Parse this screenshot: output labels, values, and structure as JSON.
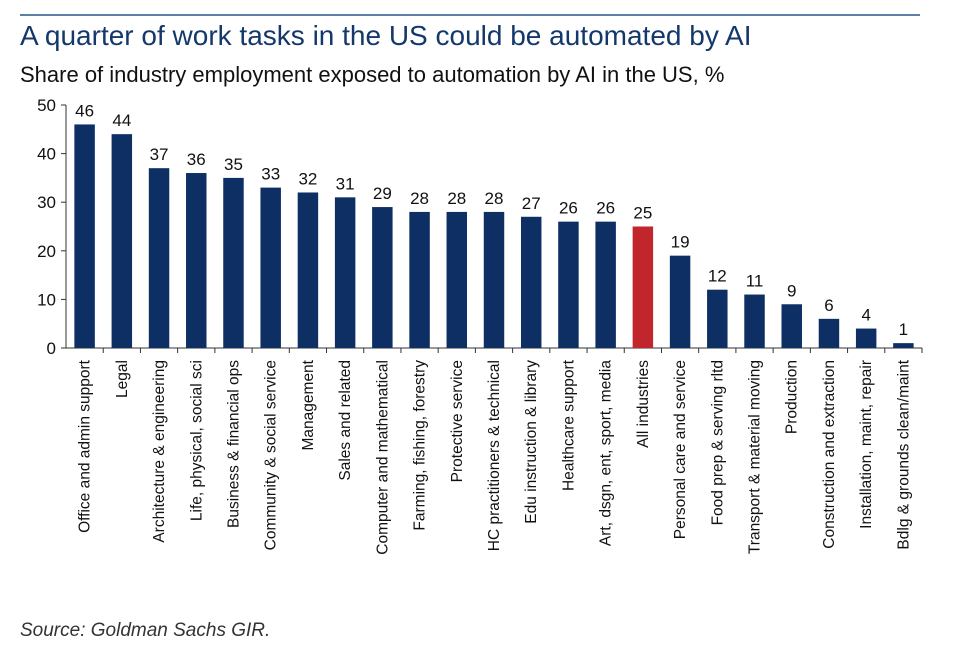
{
  "title": "A quarter of work tasks in the US could be automated by AI",
  "subtitle": "Share of industry employment exposed to automation by AI in the US, %",
  "source": "Source: Goldman Sachs GIR.",
  "colors": {
    "bar": "#0e2f63",
    "highlight": "#c0262c",
    "axis": "#333333"
  },
  "chart_data": {
    "type": "bar",
    "title": "A quarter of work tasks in the US could be automated by AI",
    "subtitle": "Share of industry employment exposed to automation by AI in the US, %",
    "xlabel": "",
    "ylabel": "",
    "ylim": [
      0,
      50
    ],
    "yticks": [
      0,
      10,
      20,
      30,
      40,
      50
    ],
    "grid": false,
    "highlight_category": "All industries",
    "categories": [
      "Office and admin support",
      "Legal",
      "Architecture & engineering",
      "Life, physical, social sci",
      "Business & financial ops",
      "Community & social service",
      "Management",
      "Sales and related",
      "Computer and mathematical",
      "Farming, fishing, forestry",
      "Protective service",
      "HC practitioners & technical",
      "Edu instruction & library",
      "Healthcare support",
      "Art, dsgn, ent, sport, media",
      "All industries",
      "Personal care and service",
      "Food prep & serving rltd",
      "Transport & material moving",
      "Production",
      "Construction and extraction",
      "Installation, maint, repair",
      "Bdlg & grounds clean/maint"
    ],
    "values": [
      46,
      44,
      37,
      36,
      35,
      33,
      32,
      31,
      29,
      28,
      28,
      28,
      27,
      26,
      26,
      25,
      19,
      12,
      11,
      9,
      6,
      4,
      1
    ]
  }
}
